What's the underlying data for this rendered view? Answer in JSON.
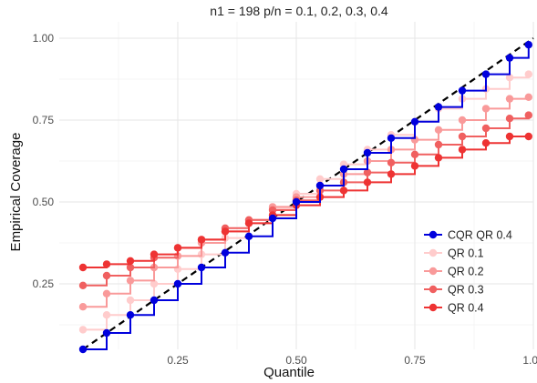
{
  "chart_data": {
    "type": "line",
    "title": "n1 = 198 p/n = 0.1, 0.2, 0.3, 0.4",
    "xlabel": "Quantile",
    "ylabel": "Empirical Coverage",
    "xlim": [
      0.0,
      1.0
    ],
    "ylim": [
      0.05,
      1.05
    ],
    "xticks": [
      0.25,
      0.5,
      0.75,
      1.0
    ],
    "xtick_labels": [
      "0.25",
      "0.50",
      "0.75",
      "1.00"
    ],
    "yticks": [
      0.25,
      0.5,
      0.75,
      1.0
    ],
    "ytick_labels": [
      "0.25",
      "0.50",
      "0.75",
      "1.00"
    ],
    "grid": true,
    "legend_position": "right",
    "reference_line": {
      "style": "dashed",
      "color": "#000000",
      "slope": 1,
      "intercept": 0
    },
    "x": [
      0.05,
      0.1,
      0.15,
      0.2,
      0.25,
      0.3,
      0.35,
      0.4,
      0.45,
      0.5,
      0.55,
      0.6,
      0.65,
      0.7,
      0.75,
      0.8,
      0.85,
      0.9,
      0.95,
      0.99
    ],
    "series": [
      {
        "name": "CQR QR 0.4",
        "color": "#0000dd",
        "values": [
          0.05,
          0.1,
          0.155,
          0.2,
          0.25,
          0.3,
          0.345,
          0.395,
          0.45,
          0.5,
          0.55,
          0.6,
          0.65,
          0.695,
          0.745,
          0.79,
          0.84,
          0.89,
          0.94,
          0.98
        ]
      },
      {
        "name": "QR 0.1",
        "color": "#ffcccc",
        "values": [
          0.11,
          0.155,
          0.2,
          0.25,
          0.295,
          0.34,
          0.39,
          0.435,
          0.48,
          0.525,
          0.57,
          0.615,
          0.66,
          0.705,
          0.745,
          0.785,
          0.815,
          0.845,
          0.88,
          0.89
        ]
      },
      {
        "name": "QR 0.2",
        "color": "#f99a9a",
        "values": [
          0.18,
          0.22,
          0.26,
          0.3,
          0.335,
          0.375,
          0.41,
          0.445,
          0.485,
          0.515,
          0.55,
          0.585,
          0.625,
          0.66,
          0.69,
          0.72,
          0.75,
          0.785,
          0.815,
          0.82
        ]
      },
      {
        "name": "QR 0.3",
        "color": "#f06060",
        "values": [
          0.245,
          0.275,
          0.3,
          0.33,
          0.36,
          0.385,
          0.42,
          0.445,
          0.475,
          0.505,
          0.535,
          0.56,
          0.59,
          0.62,
          0.645,
          0.675,
          0.7,
          0.725,
          0.755,
          0.765
        ]
      },
      {
        "name": "QR 0.4",
        "color": "#ee3333",
        "values": [
          0.3,
          0.31,
          0.32,
          0.34,
          0.36,
          0.385,
          0.41,
          0.435,
          0.46,
          0.49,
          0.515,
          0.535,
          0.56,
          0.585,
          0.61,
          0.635,
          0.66,
          0.68,
          0.7,
          0.7
        ]
      }
    ]
  }
}
